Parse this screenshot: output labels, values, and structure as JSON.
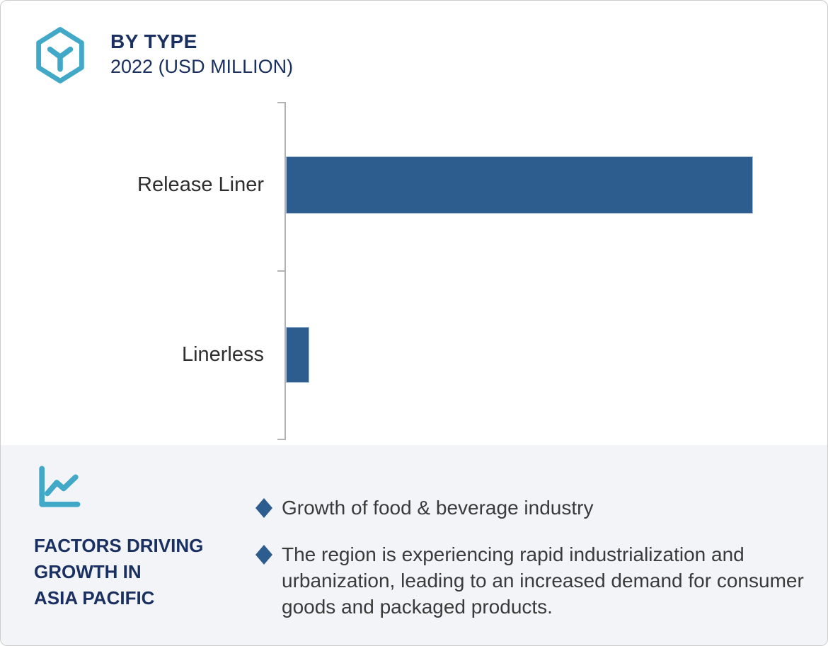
{
  "header": {
    "title": "BY TYPE",
    "subtitle": "2022 (USD MILLION)",
    "icon": "hexagon-cube-icon"
  },
  "chart_data": {
    "type": "bar",
    "orientation": "horizontal",
    "title": "BY TYPE",
    "subtitle": "2022 (USD MILLION)",
    "unit": "USD Million",
    "year": "2022",
    "categories": [
      "Release Liner",
      "Linerless"
    ],
    "values_relative_pct_of_max": [
      100,
      5
    ],
    "value_labels_shown": false,
    "axis_tick_labels_shown": false,
    "grid": false,
    "legend": "none",
    "bar_color": "#2d5c8e",
    "axis_color": "#b2b2b2"
  },
  "factors_panel": {
    "icon": "line-chart-icon",
    "heading_lines": [
      "FACTORS DRIVING",
      "GROWTH IN",
      "ASIA PACIFIC"
    ],
    "bullet_marker": "diamond",
    "bullets": [
      "Growth of food & beverage industry",
      "The region is experiencing rapid industrialization and urbanization, leading to an increased demand for consumer goods and packaged products."
    ]
  },
  "colors": {
    "accent_teal": "#41a9c7",
    "navy": "#1a3060",
    "bar_blue": "#2d5c8e",
    "panel_bg": "#f3f4f8",
    "body_text": "#3a3a3a",
    "card_border": "#cccccc"
  }
}
